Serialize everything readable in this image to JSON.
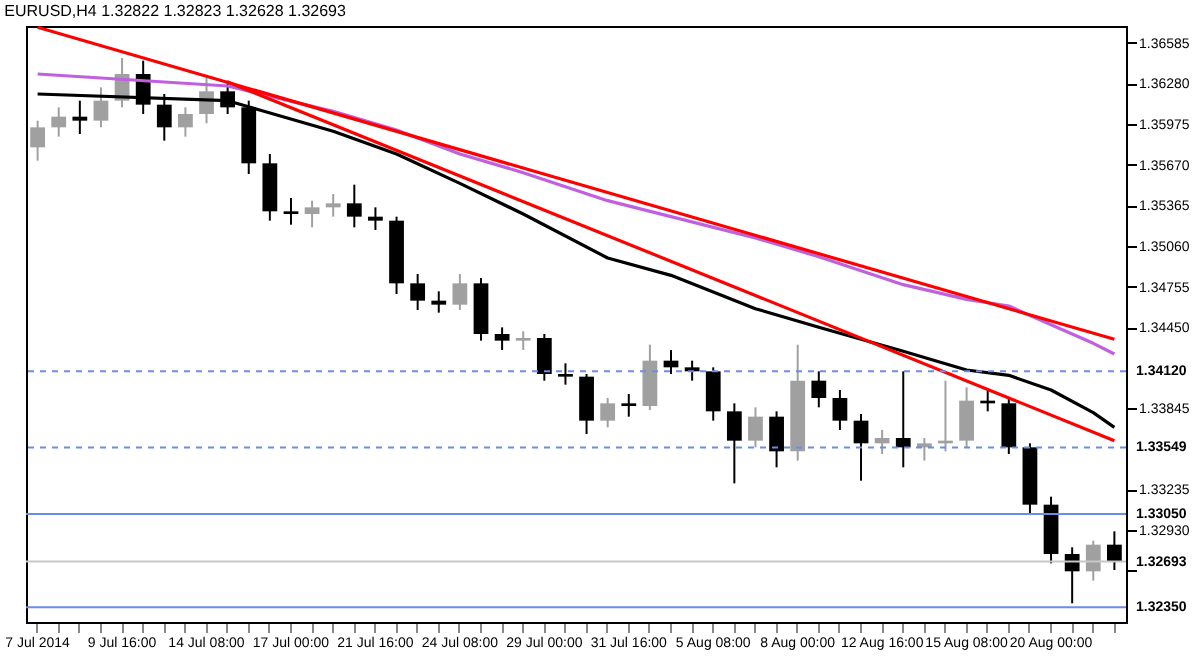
{
  "chart_data": {
    "type": "candlestick",
    "title": "EURUSD,H4  1.32822 1.32823 1.32628 1.32693",
    "categories": [
      "7 Jul 2014",
      null,
      null,
      null,
      "9 Jul 16:00",
      null,
      null,
      null,
      "14 Jul 08:00",
      null,
      null,
      null,
      "17 Jul 00:00",
      null,
      null,
      null,
      "21 Jul 16:00",
      null,
      null,
      null,
      "24 Jul 08:00",
      null,
      null,
      null,
      "29 Jul 00:00",
      null,
      null,
      null,
      "31 Jul 16:00",
      null,
      null,
      null,
      "5 Aug 08:00",
      null,
      null,
      null,
      "8 Aug 00:00",
      null,
      null,
      null,
      "12 Aug 16:00",
      null,
      null,
      null,
      "15 Aug 08:00",
      null,
      null,
      null,
      "20 Aug 00:00",
      null,
      null,
      null
    ],
    "ohlc": [
      [
        1.358,
        1.36,
        1.357,
        1.3595
      ],
      [
        1.3595,
        1.361,
        1.3588,
        1.3603
      ],
      [
        1.3603,
        1.3615,
        1.359,
        1.36
      ],
      [
        1.36,
        1.3625,
        1.3595,
        1.3615
      ],
      [
        1.3615,
        1.3647,
        1.361,
        1.3635
      ],
      [
        1.3635,
        1.3645,
        1.3605,
        1.3612
      ],
      [
        1.3612,
        1.362,
        1.3585,
        1.3595
      ],
      [
        1.3595,
        1.361,
        1.3588,
        1.3605
      ],
      [
        1.3605,
        1.3632,
        1.3598,
        1.3622
      ],
      [
        1.3622,
        1.363,
        1.3605,
        1.361
      ],
      [
        1.361,
        1.3615,
        1.356,
        1.3568
      ],
      [
        1.3568,
        1.3575,
        1.3525,
        1.3532
      ],
      [
        1.3532,
        1.3542,
        1.3522,
        1.353
      ],
      [
        1.353,
        1.354,
        1.352,
        1.3535
      ],
      [
        1.3535,
        1.3545,
        1.3528,
        1.3538
      ],
      [
        1.3538,
        1.3552,
        1.352,
        1.3528
      ],
      [
        1.3528,
        1.3535,
        1.3518,
        1.3525
      ],
      [
        1.3525,
        1.3528,
        1.347,
        1.3478
      ],
      [
        1.3478,
        1.3485,
        1.3458,
        1.3465
      ],
      [
        1.3465,
        1.3472,
        1.3456,
        1.3462
      ],
      [
        1.3462,
        1.3485,
        1.3458,
        1.3478
      ],
      [
        1.3478,
        1.3482,
        1.3435,
        1.344
      ],
      [
        1.344,
        1.3445,
        1.3428,
        1.3435
      ],
      [
        1.3435,
        1.3442,
        1.3428,
        1.3437
      ],
      [
        1.3437,
        1.344,
        1.3405,
        1.341
      ],
      [
        1.341,
        1.3418,
        1.3402,
        1.3408
      ],
      [
        1.3408,
        1.341,
        1.3365,
        1.3375
      ],
      [
        1.3375,
        1.3392,
        1.337,
        1.3388
      ],
      [
        1.3388,
        1.3395,
        1.3378,
        1.3386
      ],
      [
        1.3386,
        1.3432,
        1.3383,
        1.342
      ],
      [
        1.342,
        1.3428,
        1.341,
        1.3415
      ],
      [
        1.3415,
        1.342,
        1.3405,
        1.3412
      ],
      [
        1.3412,
        1.3415,
        1.3375,
        1.3382
      ],
      [
        1.3382,
        1.3388,
        1.3328,
        1.336
      ],
      [
        1.336,
        1.3385,
        1.3355,
        1.3378
      ],
      [
        1.3378,
        1.3382,
        1.334,
        1.3352
      ],
      [
        1.3352,
        1.3432,
        1.3345,
        1.3405
      ],
      [
        1.3405,
        1.3412,
        1.3385,
        1.3392
      ],
      [
        1.3392,
        1.3398,
        1.3368,
        1.3375
      ],
      [
        1.3375,
        1.338,
        1.333,
        1.3358
      ],
      [
        1.3358,
        1.3368,
        1.335,
        1.3362
      ],
      [
        1.3362,
        1.3412,
        1.334,
        1.3355
      ],
      [
        1.3355,
        1.3362,
        1.3345,
        1.3358
      ],
      [
        1.3358,
        1.3405,
        1.3352,
        1.336
      ],
      [
        1.336,
        1.34,
        1.3355,
        1.339
      ],
      [
        1.339,
        1.3398,
        1.3382,
        1.3388
      ],
      [
        1.3388,
        1.3392,
        1.335,
        1.3355
      ],
      [
        1.3355,
        1.3358,
        1.3305,
        1.3312
      ],
      [
        1.3312,
        1.3318,
        1.3268,
        1.3275
      ],
      [
        1.3275,
        1.328,
        1.3238,
        1.3262
      ],
      [
        1.3262,
        1.3285,
        1.3255,
        1.3282
      ],
      [
        1.3282,
        1.3292,
        1.3263,
        1.32693
      ]
    ],
    "colors": [
      "#a0a0a0",
      "#a0a0a0",
      "#000000",
      "#a0a0a0",
      "#a0a0a0",
      "#000000",
      "#000000",
      "#a0a0a0",
      "#a0a0a0",
      "#000000",
      "#000000",
      "#000000",
      "#000000",
      "#a0a0a0",
      "#a0a0a0",
      "#000000",
      "#000000",
      "#000000",
      "#000000",
      "#000000",
      "#a0a0a0",
      "#000000",
      "#000000",
      "#a0a0a0",
      "#000000",
      "#000000",
      "#000000",
      "#a0a0a0",
      "#000000",
      "#a0a0a0",
      "#000000",
      "#000000",
      "#000000",
      "#000000",
      "#a0a0a0",
      "#000000",
      "#a0a0a0",
      "#000000",
      "#000000",
      "#000000",
      "#a0a0a0",
      "#000000",
      "#a0a0a0",
      "#a0a0a0",
      "#a0a0a0",
      "#000000",
      "#000000",
      "#000000",
      "#000000",
      "#000000",
      "#a0a0a0",
      "#000000"
    ],
    "series": [
      {
        "type": "line",
        "color": "#000000",
        "values": [
          1.362,
          null,
          null,
          null,
          null,
          null,
          null,
          null,
          null,
          1.3615,
          null,
          null,
          null,
          null,
          1.3592,
          null,
          null,
          1.3575,
          null,
          null,
          1.3553,
          null,
          null,
          1.353,
          null,
          null,
          null,
          1.3497,
          null,
          null,
          1.3484,
          null,
          null,
          null,
          1.3459,
          null,
          null,
          1.3445,
          null,
          null,
          null,
          1.3427,
          null,
          null,
          1.3413,
          null,
          1.3409,
          null,
          1.3398,
          null,
          1.3381,
          1.337
        ]
      },
      {
        "type": "line",
        "color": "#c060e0",
        "values": [
          1.3635,
          null,
          null,
          null,
          null,
          null,
          null,
          null,
          null,
          1.3626,
          null,
          null,
          null,
          null,
          1.3607,
          null,
          null,
          1.3593,
          null,
          null,
          1.3575,
          null,
          null,
          1.3561,
          null,
          null,
          null,
          1.354,
          null,
          null,
          1.3528,
          null,
          null,
          null,
          1.3512,
          null,
          null,
          1.3498,
          null,
          null,
          null,
          1.3477,
          null,
          null,
          1.3466,
          null,
          1.3461,
          null,
          1.3447,
          null,
          1.3433,
          1.3425
        ]
      },
      {
        "type": "line",
        "color": "#ff0000",
        "values": [
          1.367,
          null,
          null,
          null,
          null,
          null,
          null,
          null,
          null,
          null,
          null,
          null,
          null,
          null,
          null,
          null,
          null,
          null,
          null,
          null,
          null,
          null,
          null,
          null,
          null,
          null,
          null,
          null,
          null,
          null,
          null,
          null,
          null,
          null,
          null,
          null,
          null,
          null,
          null,
          null,
          null,
          null,
          null,
          null,
          null,
          null,
          null,
          null,
          null,
          null,
          null,
          1.3436
        ]
      },
      {
        "type": "line",
        "color": "#ff0000",
        "values": [
          null,
          null,
          null,
          null,
          null,
          null,
          null,
          null,
          null,
          1.3629,
          null,
          null,
          null,
          null,
          null,
          null,
          null,
          null,
          null,
          null,
          null,
          null,
          null,
          null,
          null,
          null,
          null,
          null,
          null,
          null,
          null,
          null,
          null,
          null,
          null,
          null,
          null,
          null,
          null,
          null,
          null,
          null,
          null,
          null,
          null,
          null,
          null,
          null,
          null,
          null,
          null,
          1.336
        ]
      }
    ],
    "ylim": [
      1.3224,
      1.3671
    ],
    "yticks": [
      {
        "value": 1.36585,
        "label": "1.36585"
      },
      {
        "value": 1.3628,
        "label": "1.36280"
      },
      {
        "value": 1.35975,
        "label": "1.35975"
      },
      {
        "value": 1.3567,
        "label": "1.35670"
      },
      {
        "value": 1.35365,
        "label": "1.35365"
      },
      {
        "value": 1.3506,
        "label": "1.35060"
      },
      {
        "value": 1.34755,
        "label": "1.34755"
      },
      {
        "value": 1.3445,
        "label": "1.34450"
      },
      {
        "value": 1.33845,
        "label": "1.33845"
      },
      {
        "value": 1.33235,
        "label": "1.33235"
      },
      {
        "value": 1.3293,
        "label": "1.32930"
      },
      {
        "value": 1.32625,
        "label": null
      }
    ],
    "ref_lines": [
      {
        "axis": "y",
        "value": 1.3412,
        "label": "1.34120",
        "color": "#6a8de8",
        "line_style": "dashed"
      },
      {
        "axis": "y",
        "value": 1.33549,
        "label": "1.33549",
        "color": "#6a8de8",
        "line_style": "dashed"
      },
      {
        "axis": "y",
        "value": 1.3305,
        "label": "1.33050",
        "color": "#6a8de8",
        "line_style": "solid"
      },
      {
        "axis": "y",
        "value": 1.32693,
        "label": "1.32693",
        "color": "#c8c8c8",
        "line_style": "solid"
      },
      {
        "axis": "y",
        "value": 1.3235,
        "label": "1.32350",
        "color": "#6a8de8",
        "line_style": "solid"
      }
    ],
    "grid": false
  }
}
